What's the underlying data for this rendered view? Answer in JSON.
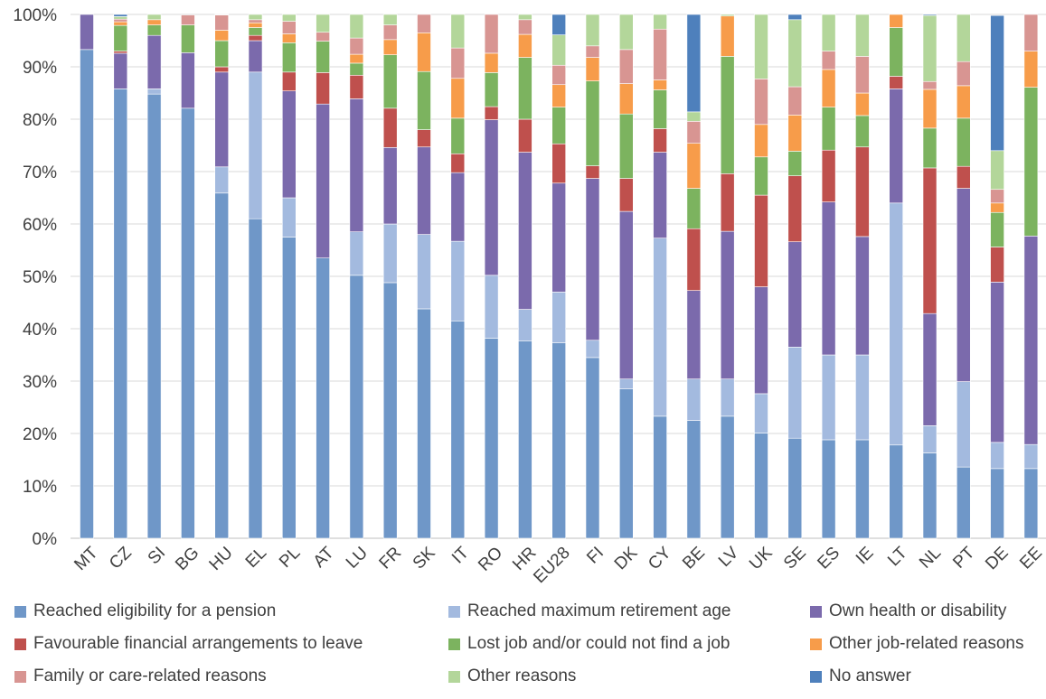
{
  "chart_data": {
    "type": "bar",
    "stacked": true,
    "title": "",
    "xlabel": "",
    "ylabel": "",
    "ylim": [
      0,
      100
    ],
    "y_ticks": [
      "0%",
      "10%",
      "20%",
      "30%",
      "40%",
      "50%",
      "60%",
      "70%",
      "80%",
      "90%",
      "100%"
    ],
    "grid": true,
    "legend_position": "bottom",
    "categories": [
      "MT",
      "CZ",
      "SI",
      "BG",
      "HU",
      "EL",
      "PL",
      "AT",
      "LU",
      "FR",
      "SK",
      "IT",
      "RO",
      "HR",
      "EU28",
      "FI",
      "DK",
      "CY",
      "BE",
      "LV",
      "UK",
      "SE",
      "ES",
      "IE",
      "LT",
      "NL",
      "PT",
      "DE",
      "EE"
    ],
    "series": [
      {
        "name": "Reached eligibility for a pension",
        "color": "#6f97c8",
        "values": [
          93.3,
          85.8,
          84.8,
          82.1,
          65.9,
          61.0,
          57.5,
          53.5,
          50.2,
          48.8,
          43.8,
          41.5,
          38.2,
          37.7,
          37.3,
          34.5,
          28.5,
          23.3,
          22.5,
          23.3,
          20.1,
          19.1,
          18.8,
          18.8,
          17.8,
          16.3,
          13.6,
          13.3,
          13.3
        ]
      },
      {
        "name": "Reached  maximum retirement age",
        "color": "#a3badf",
        "values": [
          0,
          0,
          1.0,
          0,
          5.0,
          28.0,
          7.5,
          0,
          8.3,
          11.2,
          14.2,
          15.2,
          12.0,
          6.0,
          9.7,
          3.3,
          1.9,
          34.0,
          7.9,
          7.1,
          7.5,
          17.4,
          16.2,
          16.2,
          46.2,
          5.2,
          16.3,
          5.0,
          4.6
        ]
      },
      {
        "name": "Own health or disability",
        "color": "#7b6aac",
        "values": [
          6.7,
          6.8,
          10.2,
          10.6,
          18.1,
          6.0,
          20.4,
          29.4,
          25.4,
          14.6,
          16.7,
          13.1,
          29.7,
          30.0,
          20.8,
          30.9,
          32.0,
          16.4,
          16.9,
          28.2,
          20.4,
          20.1,
          29.2,
          22.6,
          21.8,
          21.4,
          36.9,
          30.6,
          39.8
        ]
      },
      {
        "name": "Favourable financial arrangements to leave",
        "color": "#bf504d",
        "values": [
          0,
          0.4,
          0,
          0,
          1.0,
          1.0,
          3.6,
          6.0,
          4.5,
          7.5,
          3.3,
          3.6,
          2.5,
          6.3,
          7.5,
          2.4,
          6.3,
          4.5,
          11.8,
          11.0,
          17.5,
          12.6,
          9.9,
          17.1,
          2.4,
          27.8,
          4.2,
          6.7,
          0
        ]
      },
      {
        "name": "Lost job and/or could not find a job",
        "color": "#7cb35f",
        "values": [
          0,
          4.9,
          2.0,
          5.3,
          5.0,
          1.5,
          5.6,
          6.0,
          2.3,
          10.2,
          11.1,
          6.8,
          6.5,
          11.8,
          7.0,
          16.2,
          12.3,
          7.4,
          7.7,
          22.4,
          7.3,
          4.7,
          8.2,
          6.0,
          9.3,
          7.6,
          9.2,
          6.6,
          28.4
        ]
      },
      {
        "name": "Other job-related reasons",
        "color": "#f79c4a",
        "values": [
          0,
          0.7,
          1.0,
          0,
          2.0,
          0.9,
          1.7,
          0,
          1.7,
          2.9,
          7.4,
          7.6,
          3.7,
          4.4,
          4.3,
          4.5,
          5.8,
          1.9,
          8.6,
          7.7,
          6.2,
          6.9,
          7.2,
          4.3,
          2.7,
          7.4,
          6.2,
          1.8,
          6.9
        ]
      },
      {
        "name": "Family or care-related reasons",
        "color": "#d89592",
        "values": [
          0,
          0.5,
          0,
          1.9,
          2.9,
          0.6,
          2.4,
          1.7,
          3.1,
          2.8,
          3.5,
          5.8,
          7.4,
          2.8,
          3.7,
          2.2,
          6.5,
          9.7,
          4.2,
          0,
          8.7,
          5.4,
          3.5,
          7.0,
          0,
          1.5,
          4.6,
          2.6,
          7.2
        ]
      },
      {
        "name": "Other reasons",
        "color": "#b3d69a",
        "values": [
          0,
          0.5,
          1.0,
          0,
          0.5,
          1.0,
          1.3,
          3.4,
          4.5,
          2.7,
          0,
          6.6,
          0,
          1.0,
          5.8,
          6.0,
          6.8,
          2.8,
          1.8,
          0.3,
          12.3,
          12.8,
          7.0,
          8.0,
          0,
          12.6,
          9.0,
          7.4,
          0
        ]
      },
      {
        "name": "No answer",
        "color": "#4e80bc",
        "values": [
          0,
          0.4,
          0,
          0,
          0,
          0.6,
          0,
          0,
          0,
          0,
          0,
          0.5,
          0,
          0,
          4.0,
          0,
          0,
          0,
          18.6,
          0,
          0,
          1.0,
          0.5,
          0,
          0,
          0.6,
          0,
          25.8,
          0
        ]
      }
    ]
  }
}
